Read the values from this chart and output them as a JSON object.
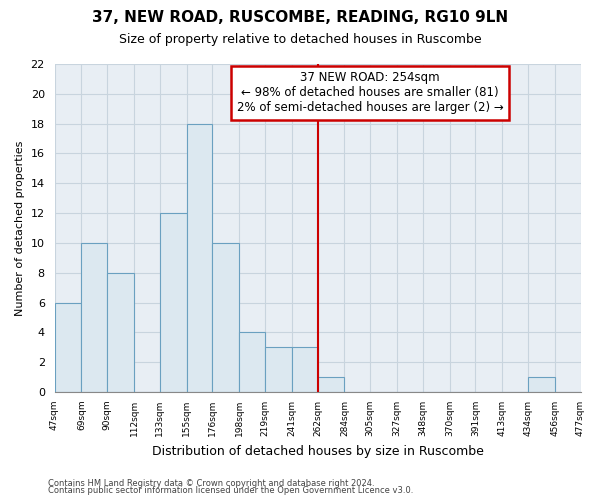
{
  "title": "37, NEW ROAD, RUSCOMBE, READING, RG10 9LN",
  "subtitle": "Size of property relative to detached houses in Ruscombe",
  "xlabel": "Distribution of detached houses by size in Ruscombe",
  "ylabel": "Number of detached properties",
  "bin_edges": [
    47,
    69,
    90,
    112,
    133,
    155,
    176,
    198,
    219,
    241,
    262,
    284,
    305,
    327,
    348,
    370,
    391,
    413,
    434,
    456,
    477
  ],
  "bar_heights": [
    6,
    10,
    8,
    0,
    12,
    18,
    10,
    4,
    3,
    3,
    1,
    0,
    0,
    0,
    0,
    0,
    0,
    0,
    1,
    0
  ],
  "bar_color": "#dce8f0",
  "bar_edge_color": "#6aa0c0",
  "vline_x": 262,
  "vline_color": "#cc0000",
  "annotation_title": "37 NEW ROAD: 254sqm",
  "annotation_line1": "← 98% of detached houses are smaller (81)",
  "annotation_line2": "2% of semi-detached houses are larger (2) →",
  "annotation_box_color": "#ffffff",
  "annotation_box_edge_color": "#cc0000",
  "ylim": [
    0,
    22
  ],
  "yticks": [
    0,
    2,
    4,
    6,
    8,
    10,
    12,
    14,
    16,
    18,
    20,
    22
  ],
  "tick_labels": [
    "47sqm",
    "69sqm",
    "90sqm",
    "112sqm",
    "133sqm",
    "155sqm",
    "176sqm",
    "198sqm",
    "219sqm",
    "241sqm",
    "262sqm",
    "284sqm",
    "305sqm",
    "327sqm",
    "348sqm",
    "370sqm",
    "391sqm",
    "413sqm",
    "434sqm",
    "456sqm",
    "477sqm"
  ],
  "footer1": "Contains HM Land Registry data © Crown copyright and database right 2024.",
  "footer2": "Contains public sector information licensed under the Open Government Licence v3.0.",
  "background_color": "#ffffff",
  "plot_bg_color": "#e8eef4",
  "grid_color": "#c8d4de"
}
